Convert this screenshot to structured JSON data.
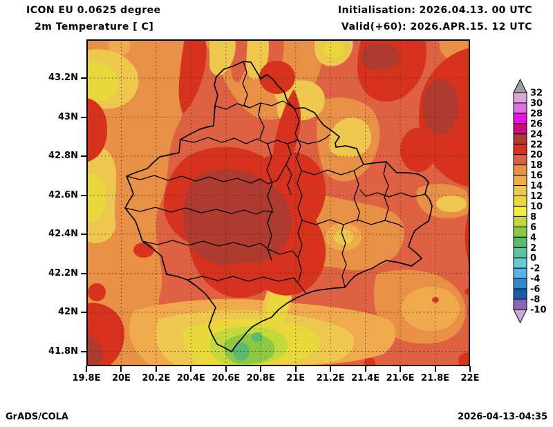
{
  "header": {
    "model_line": "ICON EU 0.0625 degree",
    "variable_line": "2m Temperature [ C]",
    "init_line": "Initialisation: 2026.04.13. 00 UTC",
    "valid_line": "Valid(+60): 2026.APR.15. 12 UTC"
  },
  "map": {
    "x_axis": {
      "labels": [
        "19.8E",
        "20E",
        "20.2E",
        "20.4E",
        "20.6E",
        "20.8E",
        "21E",
        "21.2E",
        "21.4E",
        "21.6E",
        "21.8E",
        "22E"
      ]
    },
    "y_axis": {
      "labels": [
        "43.2N",
        "43N",
        "42.8N",
        "42.6N",
        "42.4N",
        "42.2N",
        "42N",
        "41.8N"
      ]
    }
  },
  "colorbar": {
    "labels": [
      "32",
      "30",
      "28",
      "26",
      "24",
      "22",
      "20",
      "18",
      "16",
      "14",
      "12",
      "10",
      "8",
      "6",
      "4",
      "2",
      "0",
      "-2",
      "-4",
      "-6",
      "-8",
      "-10"
    ],
    "cells": [
      {
        "range": "30..32",
        "color": "#d9a7d9"
      },
      {
        "range": "28..30",
        "color": "#de6ede"
      },
      {
        "range": "26..28",
        "color": "#e414e4"
      },
      {
        "range": "24..26",
        "color": "#c70d7e"
      },
      {
        "range": "22..24",
        "color": "#ae3a30"
      },
      {
        "range": "20..22",
        "color": "#d7321e"
      },
      {
        "range": "18..20",
        "color": "#de6144"
      },
      {
        "range": "16..18",
        "color": "#e89045"
      },
      {
        "range": "14..16",
        "color": "#f0aa4d"
      },
      {
        "range": "12..14",
        "color": "#eec84e"
      },
      {
        "range": "10..12",
        "color": "#e9d83b"
      },
      {
        "range": "8..10",
        "color": "#f3ef3e"
      },
      {
        "range": "6..8",
        "color": "#c3d83b"
      },
      {
        "range": "4..6",
        "color": "#8cc844"
      },
      {
        "range": "2..4",
        "color": "#58bb70"
      },
      {
        "range": "0..2",
        "color": "#5cc39b"
      },
      {
        "range": "-2..0",
        "color": "#67ccd6"
      },
      {
        "range": "-4..-2",
        "color": "#58b4e2"
      },
      {
        "range": "-6..-4",
        "color": "#2f87cd"
      },
      {
        "range": "-8..-6",
        "color": "#1a5caa"
      },
      {
        "range": "-10..-8",
        "color": "#8a64b6"
      }
    ],
    "arrow_top_color": "#9aa0a6",
    "arrow_bottom_color": "#c7abdd"
  },
  "footer": {
    "left": "GrADS/COLA",
    "right": "2026-04-13-04:35"
  }
}
